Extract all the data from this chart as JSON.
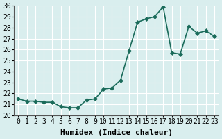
{
  "x": [
    0,
    1,
    2,
    3,
    4,
    5,
    6,
    7,
    8,
    9,
    10,
    11,
    12,
    13,
    14,
    15,
    16,
    17,
    18,
    19,
    20,
    21,
    22,
    23
  ],
  "y": [
    21.5,
    21.3,
    21.3,
    21.2,
    21.2,
    20.8,
    20.7,
    20.7,
    21.4,
    21.5,
    22.4,
    22.5,
    23.2,
    25.9,
    28.5,
    28.8,
    29.0,
    29.9,
    25.7,
    25.6,
    28.1,
    27.5,
    27.7,
    27.2
  ],
  "xlabel": "Humidex (Indice chaleur)",
  "ylim": [
    20,
    30
  ],
  "xlim": [
    -0.5,
    23.5
  ],
  "yticks": [
    20,
    21,
    22,
    23,
    24,
    25,
    26,
    27,
    28,
    29,
    30
  ],
  "xticks": [
    0,
    1,
    2,
    3,
    4,
    5,
    6,
    7,
    8,
    9,
    10,
    11,
    12,
    13,
    14,
    15,
    16,
    17,
    18,
    19,
    20,
    21,
    22,
    23
  ],
  "line_color": "#1a6b5a",
  "marker_color": "#1a6b5a",
  "bg_color": "#d9eeee",
  "grid_color": "#ffffff",
  "tick_label_color": "#000000",
  "xlabel_color": "#000000",
  "xlabel_fontsize": 8,
  "tick_fontsize": 7,
  "line_width": 1.2,
  "marker_size": 3
}
